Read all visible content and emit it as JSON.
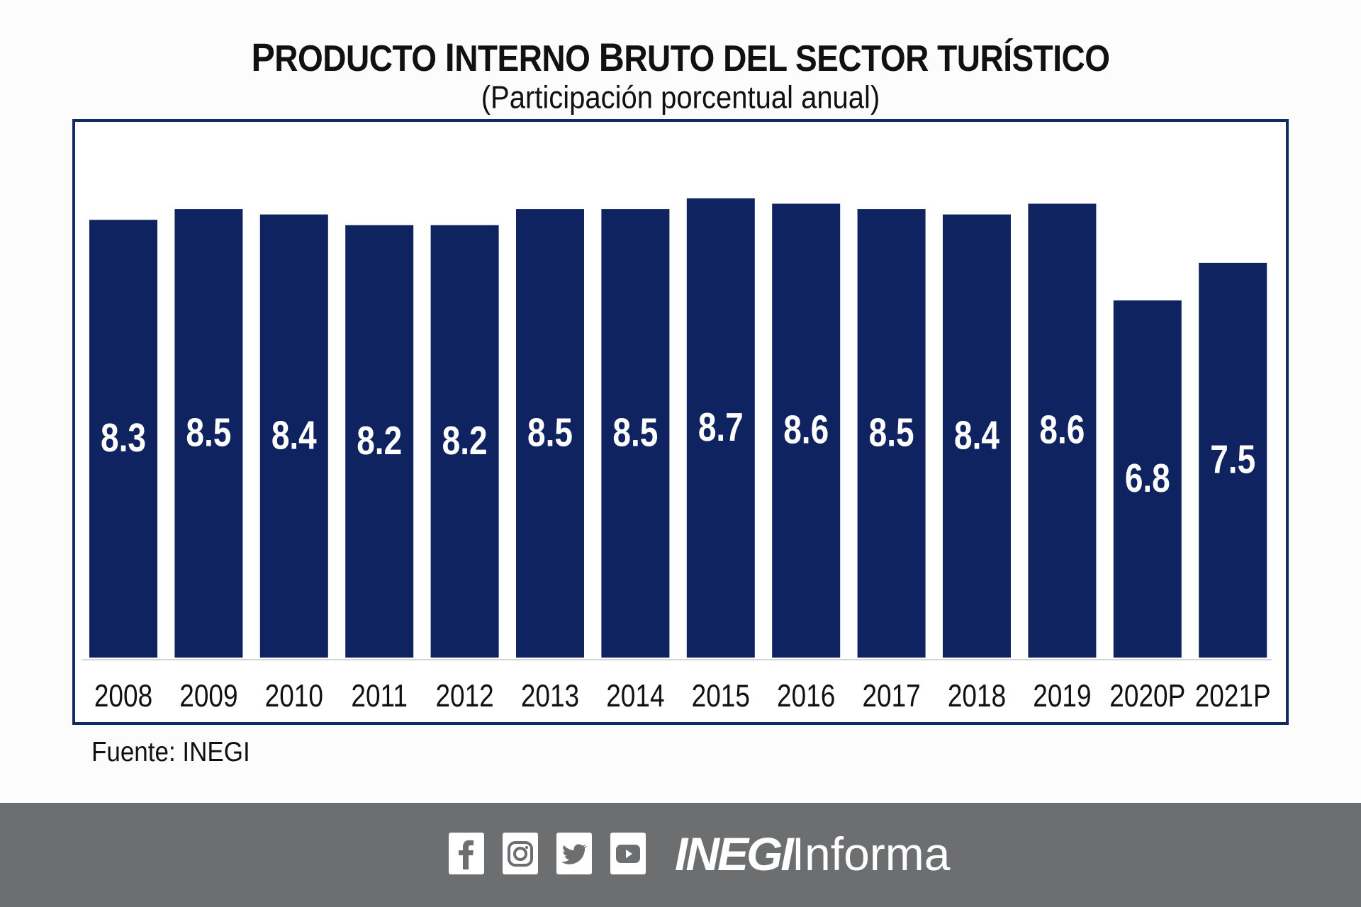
{
  "chart_data": {
    "type": "bar",
    "title": "Producto Interno Bruto del sector turístico",
    "subtitle": "(Participación porcentual anual)",
    "categories": [
      "2008",
      "2009",
      "2010",
      "2011",
      "2012",
      "2013",
      "2014",
      "2015",
      "2016",
      "2017",
      "2018",
      "2019",
      "2020P",
      "2021P"
    ],
    "values": [
      8.3,
      8.5,
      8.4,
      8.2,
      8.2,
      8.5,
      8.5,
      8.7,
      8.6,
      8.5,
      8.4,
      8.6,
      6.8,
      7.5
    ],
    "value_labels": [
      "8.3",
      "8.5",
      "8.4",
      "8.2",
      "8.2",
      "8.5",
      "8.5",
      "8.7",
      "8.6",
      "8.5",
      "8.4",
      "8.6",
      "6.8",
      "7.5"
    ],
    "xlabel": "",
    "ylabel": "",
    "ylim": [
      0.15,
      9.0
    ],
    "grid": false,
    "legend": "none",
    "bar_color": "#0f2361",
    "source": "Fuente: INEGI"
  },
  "title_parts": [
    {
      "big": "P",
      "rest": "RODUCTO "
    },
    {
      "big": "I",
      "rest": "NTERNO "
    },
    {
      "big": "B",
      "rest": "RUTO DEL SECTOR TURÍSTICO"
    }
  ],
  "footer": {
    "icons": [
      "facebook-icon",
      "instagram-icon",
      "twitter-icon",
      "youtube-icon"
    ],
    "brand_bold": "INEGI",
    "brand_light": "Informa",
    "background": "#6d6e70"
  }
}
